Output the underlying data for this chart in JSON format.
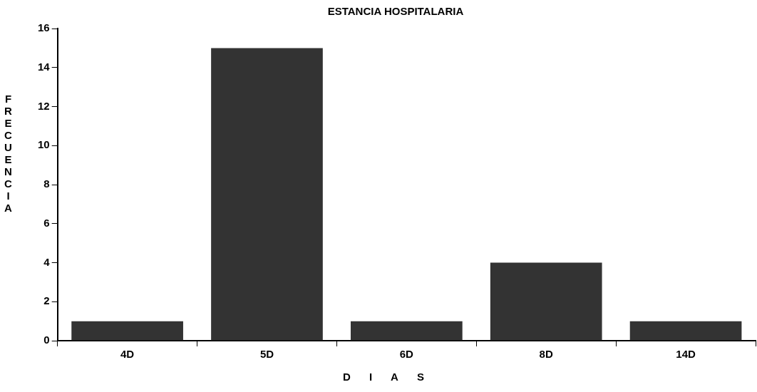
{
  "chart_data": {
    "type": "bar",
    "title": "ESTANCIA HOSPITALARIA",
    "xlabel": "DIAS",
    "ylabel": "FRECUENCIA",
    "categories": [
      "4D",
      "5D",
      "6D",
      "8D",
      "14D"
    ],
    "values": [
      1,
      15,
      1,
      4,
      1
    ],
    "color": "#333333",
    "ylim": [
      0,
      16
    ],
    "yticks": [
      0,
      2,
      4,
      6,
      8,
      10,
      12,
      14,
      16
    ],
    "grid": false,
    "legend": false
  }
}
